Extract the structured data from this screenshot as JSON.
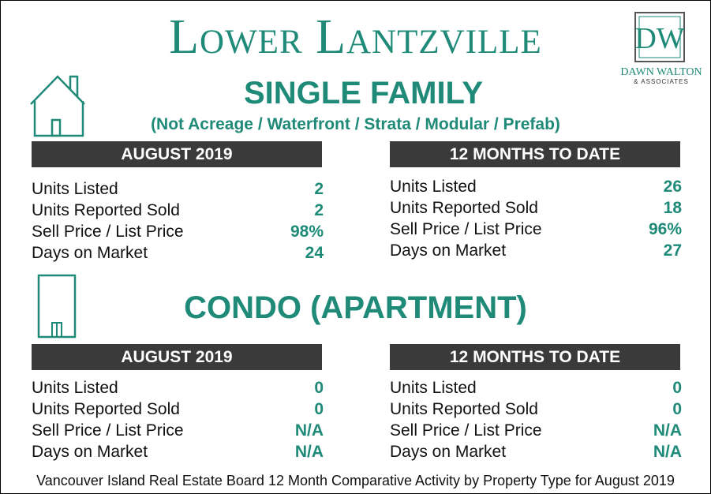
{
  "header": {
    "title": "Lower Lantzville"
  },
  "logo": {
    "monogram": "DW",
    "name": "DAWN WALTON",
    "sub": "& ASSOCIATES"
  },
  "single_family": {
    "title": "SINGLE FAMILY",
    "subtitle": "(Not Acreage / Waterfront / Strata / Modular / Prefab)",
    "month": {
      "header": "AUGUST 2019",
      "rows": [
        {
          "label": "Units Listed",
          "value": "2"
        },
        {
          "label": "Units Reported Sold",
          "value": "2"
        },
        {
          "label": "Sell Price / List Price",
          "value": "98%"
        },
        {
          "label": "Days on Market",
          "value": "24"
        }
      ]
    },
    "ytd": {
      "header": "12 MONTHS TO DATE",
      "rows": [
        {
          "label": "Units Listed",
          "value": "26"
        },
        {
          "label": "Units Reported Sold",
          "value": "18"
        },
        {
          "label": "Sell Price / List Price",
          "value": "96%"
        },
        {
          "label": "Days on Market",
          "value": "27"
        }
      ]
    }
  },
  "condo": {
    "title": "CONDO (APARTMENT)",
    "month": {
      "header": "AUGUST 2019",
      "rows": [
        {
          "label": "Units Listed",
          "value": "0"
        },
        {
          "label": "Units Reported Sold",
          "value": "0"
        },
        {
          "label": "Sell Price / List Price",
          "value": "N/A"
        },
        {
          "label": "Days on Market",
          "value": "N/A"
        }
      ]
    },
    "ytd": {
      "header": "12 MONTHS TO DATE",
      "rows": [
        {
          "label": "Units Listed",
          "value": "0"
        },
        {
          "label": "Units Reported Sold",
          "value": "0"
        },
        {
          "label": "Sell Price / List Price",
          "value": "N/A"
        },
        {
          "label": "Days on Market",
          "value": "N/A"
        }
      ]
    }
  },
  "footer": {
    "text": "Vancouver Island Real Estate Board 12 Month Comparative Activity by Property Type for August 2019"
  },
  "colors": {
    "accent": "#1f8a78",
    "bar": "#3a3a3a"
  },
  "icons": {
    "single_family": "house-icon",
    "condo": "apartment-building-icon"
  }
}
